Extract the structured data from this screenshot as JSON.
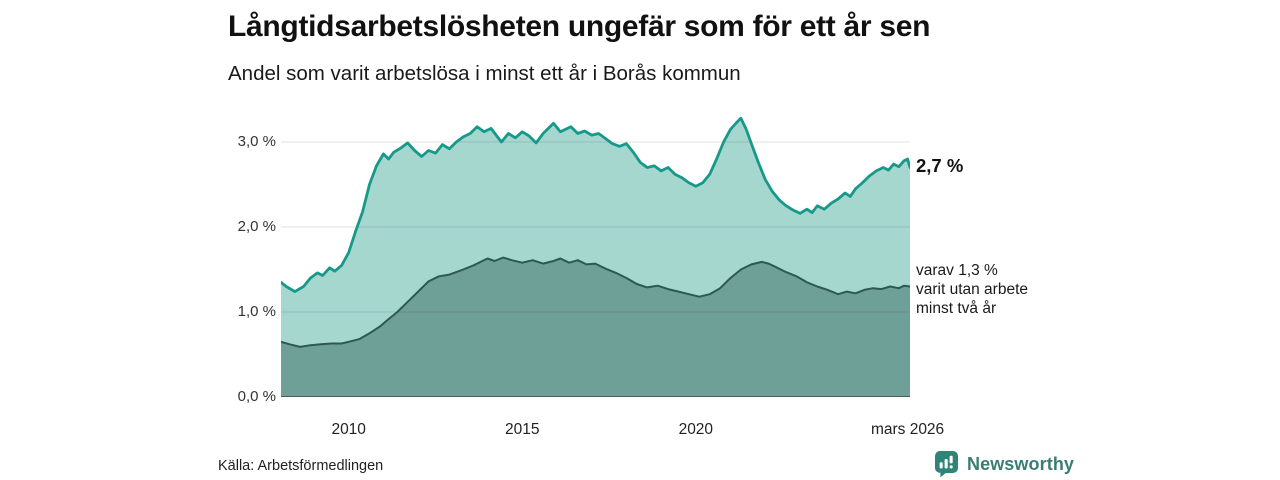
{
  "chart_data": {
    "type": "area",
    "title": "Långtidsarbetslösheten ungefär som för ett år sen",
    "subtitle": "Andel som varit arbetslösa i minst ett år i Borås kommun",
    "xlabel": "",
    "ylabel": "",
    "grid": "horizontal",
    "legend_position": "none",
    "xlim": [
      2008.05,
      2026.17
    ],
    "ylim": [
      0,
      3.353
    ],
    "ytick_labels": [
      "3,0 %",
      "2,0 %",
      "1,0 %",
      "0,0 %"
    ],
    "ytick_values": [
      3.0,
      2.0,
      1.0,
      0.0
    ],
    "xtick_labels": [
      "2010",
      "2015",
      "2020",
      "mars 2026"
    ],
    "xtick_values": [
      2010,
      2015,
      2020,
      2026.1
    ],
    "grid_y_values": [
      1.0,
      2.0,
      3.0
    ],
    "colors": {
      "grid": "rgba(70,70,70,0.17)",
      "baseline": "#444444"
    },
    "annotations": {
      "latest_total": "2,7 %",
      "latest_sub_lines": [
        "varav 1,3 %",
        "varit utan arbete",
        "minst två år"
      ]
    },
    "series": [
      {
        "name": "Andel arbetslösa minst ett år",
        "color": "#16998a",
        "fill": "#a5d7cf",
        "stroke_width": 2.8,
        "points": [
          [
            2008.05,
            1.35
          ],
          [
            2008.2,
            1.3
          ],
          [
            2008.45,
            1.24
          ],
          [
            2008.7,
            1.3
          ],
          [
            2008.9,
            1.4
          ],
          [
            2009.1,
            1.46
          ],
          [
            2009.25,
            1.43
          ],
          [
            2009.45,
            1.52
          ],
          [
            2009.6,
            1.48
          ],
          [
            2009.8,
            1.55
          ],
          [
            2010.0,
            1.7
          ],
          [
            2010.2,
            1.95
          ],
          [
            2010.4,
            2.18
          ],
          [
            2010.6,
            2.5
          ],
          [
            2010.8,
            2.72
          ],
          [
            2011.0,
            2.86
          ],
          [
            2011.15,
            2.8
          ],
          [
            2011.3,
            2.88
          ],
          [
            2011.5,
            2.93
          ],
          [
            2011.7,
            2.99
          ],
          [
            2011.9,
            2.9
          ],
          [
            2012.1,
            2.83
          ],
          [
            2012.3,
            2.9
          ],
          [
            2012.5,
            2.87
          ],
          [
            2012.7,
            2.97
          ],
          [
            2012.9,
            2.92
          ],
          [
            2013.1,
            3.0
          ],
          [
            2013.3,
            3.06
          ],
          [
            2013.5,
            3.1
          ],
          [
            2013.7,
            3.18
          ],
          [
            2013.9,
            3.12
          ],
          [
            2014.1,
            3.16
          ],
          [
            2014.4,
            3.0
          ],
          [
            2014.6,
            3.1
          ],
          [
            2014.8,
            3.05
          ],
          [
            2015.0,
            3.12
          ],
          [
            2015.2,
            3.07
          ],
          [
            2015.4,
            2.99
          ],
          [
            2015.6,
            3.1
          ],
          [
            2015.9,
            3.22
          ],
          [
            2016.1,
            3.12
          ],
          [
            2016.4,
            3.18
          ],
          [
            2016.6,
            3.1
          ],
          [
            2016.8,
            3.13
          ],
          [
            2017.0,
            3.08
          ],
          [
            2017.2,
            3.1
          ],
          [
            2017.4,
            3.04
          ],
          [
            2017.6,
            2.98
          ],
          [
            2017.8,
            2.95
          ],
          [
            2018.0,
            2.98
          ],
          [
            2018.2,
            2.88
          ],
          [
            2018.4,
            2.76
          ],
          [
            2018.6,
            2.7
          ],
          [
            2018.8,
            2.72
          ],
          [
            2019.0,
            2.66
          ],
          [
            2019.2,
            2.7
          ],
          [
            2019.4,
            2.62
          ],
          [
            2019.6,
            2.58
          ],
          [
            2019.8,
            2.52
          ],
          [
            2020.0,
            2.48
          ],
          [
            2020.2,
            2.52
          ],
          [
            2020.4,
            2.62
          ],
          [
            2020.6,
            2.8
          ],
          [
            2020.8,
            3.0
          ],
          [
            2021.0,
            3.15
          ],
          [
            2021.2,
            3.24
          ],
          [
            2021.3,
            3.28
          ],
          [
            2021.45,
            3.15
          ],
          [
            2021.6,
            2.98
          ],
          [
            2021.8,
            2.76
          ],
          [
            2022.0,
            2.56
          ],
          [
            2022.2,
            2.42
          ],
          [
            2022.4,
            2.32
          ],
          [
            2022.6,
            2.25
          ],
          [
            2022.8,
            2.2
          ],
          [
            2023.0,
            2.16
          ],
          [
            2023.2,
            2.21
          ],
          [
            2023.35,
            2.17
          ],
          [
            2023.5,
            2.25
          ],
          [
            2023.7,
            2.21
          ],
          [
            2023.9,
            2.28
          ],
          [
            2024.1,
            2.33
          ],
          [
            2024.3,
            2.4
          ],
          [
            2024.45,
            2.36
          ],
          [
            2024.6,
            2.45
          ],
          [
            2024.8,
            2.52
          ],
          [
            2025.0,
            2.6
          ],
          [
            2025.2,
            2.66
          ],
          [
            2025.4,
            2.7
          ],
          [
            2025.55,
            2.67
          ],
          [
            2025.7,
            2.74
          ],
          [
            2025.85,
            2.71
          ],
          [
            2026.0,
            2.78
          ],
          [
            2026.1,
            2.8
          ],
          [
            2026.17,
            2.7
          ]
        ]
      },
      {
        "name": "Varav utan arbete minst två år",
        "color": "#2d5950",
        "fill": "#6fa098",
        "stroke_width": 2,
        "points": [
          [
            2008.05,
            0.65
          ],
          [
            2008.3,
            0.62
          ],
          [
            2008.6,
            0.59
          ],
          [
            2008.9,
            0.61
          ],
          [
            2009.2,
            0.62
          ],
          [
            2009.5,
            0.63
          ],
          [
            2009.8,
            0.63
          ],
          [
            2010.0,
            0.65
          ],
          [
            2010.3,
            0.68
          ],
          [
            2010.6,
            0.75
          ],
          [
            2010.9,
            0.83
          ],
          [
            2011.1,
            0.9
          ],
          [
            2011.4,
            1.0
          ],
          [
            2011.7,
            1.12
          ],
          [
            2012.0,
            1.24
          ],
          [
            2012.3,
            1.36
          ],
          [
            2012.6,
            1.42
          ],
          [
            2012.9,
            1.44
          ],
          [
            2013.1,
            1.47
          ],
          [
            2013.3,
            1.5
          ],
          [
            2013.6,
            1.55
          ],
          [
            2013.85,
            1.6
          ],
          [
            2014.0,
            1.63
          ],
          [
            2014.2,
            1.6
          ],
          [
            2014.45,
            1.64
          ],
          [
            2014.7,
            1.61
          ],
          [
            2015.0,
            1.58
          ],
          [
            2015.3,
            1.61
          ],
          [
            2015.6,
            1.57
          ],
          [
            2015.9,
            1.6
          ],
          [
            2016.1,
            1.63
          ],
          [
            2016.35,
            1.58
          ],
          [
            2016.6,
            1.61
          ],
          [
            2016.85,
            1.56
          ],
          [
            2017.1,
            1.57
          ],
          [
            2017.4,
            1.51
          ],
          [
            2017.7,
            1.46
          ],
          [
            2018.0,
            1.4
          ],
          [
            2018.3,
            1.33
          ],
          [
            2018.6,
            1.29
          ],
          [
            2018.9,
            1.31
          ],
          [
            2019.2,
            1.27
          ],
          [
            2019.5,
            1.24
          ],
          [
            2019.8,
            1.21
          ],
          [
            2020.1,
            1.18
          ],
          [
            2020.4,
            1.21
          ],
          [
            2020.7,
            1.28
          ],
          [
            2021.0,
            1.4
          ],
          [
            2021.3,
            1.5
          ],
          [
            2021.6,
            1.56
          ],
          [
            2021.9,
            1.59
          ],
          [
            2022.1,
            1.57
          ],
          [
            2022.35,
            1.52
          ],
          [
            2022.6,
            1.47
          ],
          [
            2022.9,
            1.42
          ],
          [
            2023.2,
            1.35
          ],
          [
            2023.5,
            1.3
          ],
          [
            2023.8,
            1.26
          ],
          [
            2024.1,
            1.21
          ],
          [
            2024.35,
            1.24
          ],
          [
            2024.6,
            1.22
          ],
          [
            2024.85,
            1.26
          ],
          [
            2025.1,
            1.28
          ],
          [
            2025.35,
            1.27
          ],
          [
            2025.6,
            1.3
          ],
          [
            2025.85,
            1.28
          ],
          [
            2026.0,
            1.31
          ],
          [
            2026.17,
            1.3
          ]
        ]
      }
    ]
  },
  "footer": {
    "source": "Källa: Arbetsförmedlingen",
    "brand": "Newsworthy"
  }
}
